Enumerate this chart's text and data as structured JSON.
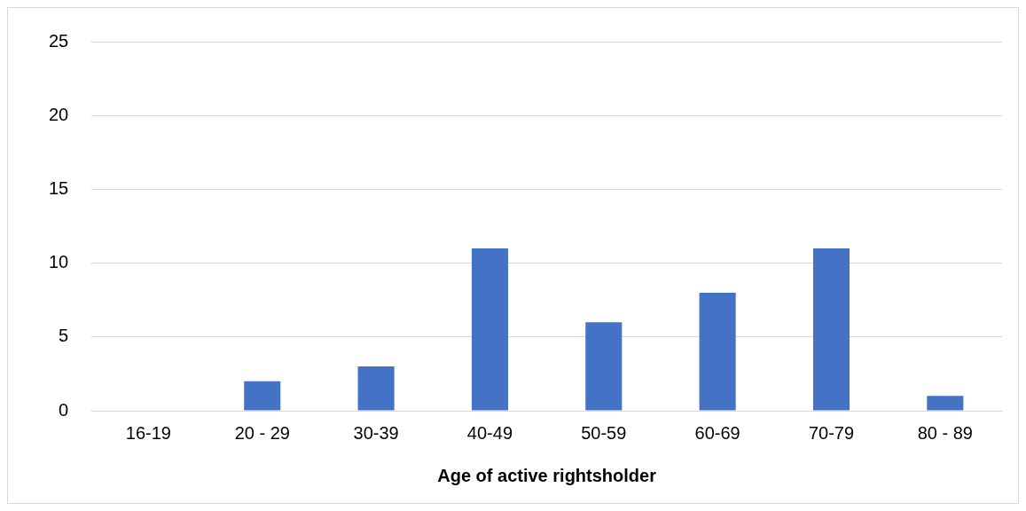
{
  "chart_data": {
    "type": "bar",
    "xlabel": "Age of active rightsholder",
    "categories": [
      "16-19",
      "20 - 29",
      "30-39",
      "40-49",
      "50-59",
      "60-69",
      "70-79",
      "80 - 89"
    ],
    "values": [
      0,
      2,
      3,
      11,
      6,
      8,
      11,
      1
    ],
    "color": "#4472c4",
    "ylim": [
      0,
      25
    ],
    "yticks": [
      0,
      5,
      10,
      15,
      20,
      25
    ],
    "grid": "y",
    "legend": false
  }
}
